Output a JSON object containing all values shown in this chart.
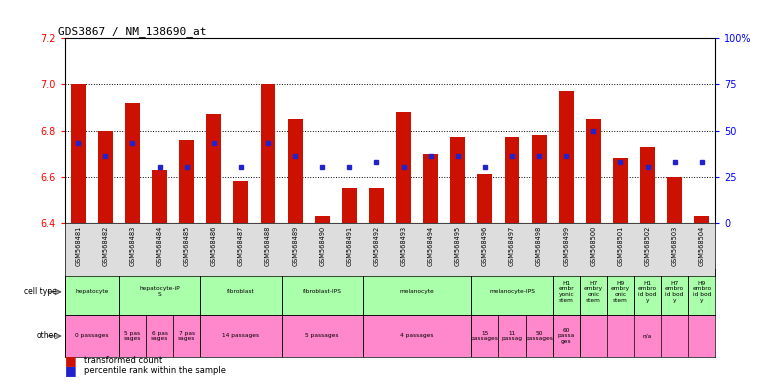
{
  "title": "GDS3867 / NM_138690_at",
  "gsm_labels": [
    "GSM568481",
    "GSM568482",
    "GSM568483",
    "GSM568484",
    "GSM568485",
    "GSM568486",
    "GSM568487",
    "GSM568488",
    "GSM568489",
    "GSM568490",
    "GSM568491",
    "GSM568492",
    "GSM568493",
    "GSM568494",
    "GSM568495",
    "GSM568496",
    "GSM568497",
    "GSM568498",
    "GSM568499",
    "GSM568500",
    "GSM568501",
    "GSM568502",
    "GSM568503",
    "GSM568504"
  ],
  "red_values": [
    7.0,
    6.8,
    6.92,
    6.63,
    6.76,
    6.87,
    6.58,
    7.0,
    6.85,
    6.43,
    6.55,
    6.55,
    6.88,
    6.7,
    6.77,
    6.61,
    6.77,
    6.78,
    6.97,
    6.85,
    6.68,
    6.73,
    6.6,
    6.43
  ],
  "blue_percentiles": [
    43,
    36,
    43,
    30,
    30,
    43,
    30,
    43,
    36,
    30,
    30,
    33,
    30,
    36,
    36,
    30,
    36,
    36,
    36,
    50,
    33,
    30,
    33,
    33
  ],
  "ylim_lo": 6.4,
  "ylim_hi": 7.2,
  "yticks_left": [
    6.4,
    6.6,
    6.8,
    7.0,
    7.2
  ],
  "yticks_right": [
    0,
    25,
    50,
    75,
    100
  ],
  "bar_color": "#CC1100",
  "dot_color": "#2222CC",
  "bg_color": "#FFFFFF",
  "cell_type_color": "#AAFFAA",
  "other_color": "#FF88CC",
  "gsm_bg_color": "#DDDDDD",
  "cell_groups": [
    {
      "label": "hepatocyte",
      "start": 0,
      "end": 2
    },
    {
      "label": "hepatocyte-iP\nS",
      "start": 2,
      "end": 5
    },
    {
      "label": "fibroblast",
      "start": 5,
      "end": 8
    },
    {
      "label": "fibroblast-IPS",
      "start": 8,
      "end": 11
    },
    {
      "label": "melanocyte",
      "start": 11,
      "end": 15
    },
    {
      "label": "melanocyte-IPS",
      "start": 15,
      "end": 18
    },
    {
      "label": "H1\nembr\nyonic\nstem",
      "start": 18,
      "end": 19
    },
    {
      "label": "H7\nembry\nonic\nstem",
      "start": 19,
      "end": 20
    },
    {
      "label": "H9\nembry\nonic\nstem",
      "start": 20,
      "end": 21
    },
    {
      "label": "H1\nembro\nid bod\ny",
      "start": 21,
      "end": 22
    },
    {
      "label": "H7\nembro\nid bod\ny",
      "start": 22,
      "end": 23
    },
    {
      "label": "H9\nembro\nid bod\ny",
      "start": 23,
      "end": 24
    }
  ],
  "other_groups": [
    {
      "label": "0 passages",
      "start": 0,
      "end": 2
    },
    {
      "label": "5 pas\nsages",
      "start": 2,
      "end": 3
    },
    {
      "label": "6 pas\nsages",
      "start": 3,
      "end": 4
    },
    {
      "label": "7 pas\nsages",
      "start": 4,
      "end": 5
    },
    {
      "label": "14 passages",
      "start": 5,
      "end": 8
    },
    {
      "label": "5 passages",
      "start": 8,
      "end": 11
    },
    {
      "label": "4 passages",
      "start": 11,
      "end": 15
    },
    {
      "label": "15\npassages",
      "start": 15,
      "end": 16
    },
    {
      "label": "11\npassag",
      "start": 16,
      "end": 17
    },
    {
      "label": "50\npassages",
      "start": 17,
      "end": 18
    },
    {
      "label": "60\npassa\nges",
      "start": 18,
      "end": 19
    },
    {
      "label": "n/a",
      "start": 19,
      "end": 24
    }
  ],
  "group_boundaries": [
    0,
    2,
    5,
    8,
    11,
    15,
    18,
    19,
    20,
    21,
    22,
    23,
    24
  ]
}
